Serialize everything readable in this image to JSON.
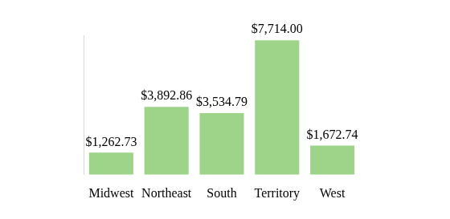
{
  "chart_data": {
    "type": "bar",
    "categories": [
      "Midwest",
      "Northeast",
      "South",
      "Territory",
      "West"
    ],
    "values": [
      1262.73,
      3892.86,
      3534.79,
      7714.0,
      1672.74
    ],
    "value_labels": [
      "$1,262.73",
      "$3,892.86",
      "$3,534.79",
      "$7,714.00",
      "$1,672.74"
    ],
    "color": "#9ed48a",
    "ylim": [
      0,
      8000
    ],
    "grid": false,
    "data_labels": true,
    "tick_labels": "x"
  }
}
